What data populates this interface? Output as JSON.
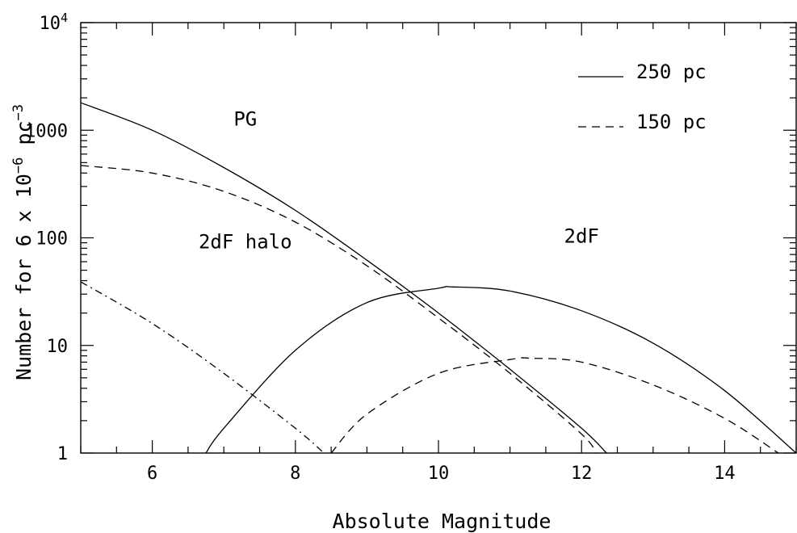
{
  "chart_data": {
    "type": "line",
    "xlabel": "Absolute Magnitude",
    "ylabel": {
      "prefix": "Number for 6 x 10",
      "sup1": "−6",
      "mid": " pc",
      "sup2": "−3"
    },
    "xlim": [
      5,
      15
    ],
    "ylim": [
      1,
      10000
    ],
    "y_scale": "log",
    "x_ticks": [
      6,
      8,
      10,
      12,
      14
    ],
    "x_tick_labels": [
      "6",
      "8",
      "10",
      "12",
      "14"
    ],
    "y_ticks": [
      1,
      10,
      100,
      1000
    ],
    "y_tick_labels": [
      "1",
      "10",
      "100",
      "1000"
    ],
    "y_top_label": {
      "base": "10",
      "exp": "4"
    },
    "legend": {
      "position": "top-right",
      "entries": [
        {
          "label": "250 pc",
          "style": "solid"
        },
        {
          "label": "150 pc",
          "style": "dashed"
        }
      ]
    },
    "annotations": [
      {
        "text": "PG",
        "x": 7.3,
        "y": 1100
      },
      {
        "text": "2dF halo",
        "x": 7.3,
        "y": 80
      },
      {
        "text": "2dF",
        "x": 12.0,
        "y": 90
      }
    ],
    "series": [
      {
        "group": "PG",
        "style": "solid",
        "x": [
          5,
          6,
          7,
          8,
          9,
          10,
          11,
          12,
          12.35
        ],
        "y": [
          1800,
          1000,
          450,
          180,
          62,
          20,
          6,
          1.7,
          1
        ]
      },
      {
        "group": "PG",
        "style": "dashed",
        "x": [
          5,
          6,
          7,
          8,
          9,
          10,
          11,
          12,
          12.2
        ],
        "y": [
          470,
          400,
          270,
          140,
          55,
          18,
          5.5,
          1.5,
          1
        ]
      },
      {
        "group": "2dF",
        "style": "solid",
        "x": [
          6.75,
          7,
          8,
          9,
          10,
          10.2,
          11,
          12,
          13,
          14,
          15
        ],
        "y": [
          1,
          1.7,
          9,
          25,
          34,
          35,
          32,
          21,
          10.5,
          3.8,
          1
        ]
      },
      {
        "group": "2dF",
        "style": "dashed",
        "x": [
          8.5,
          9,
          10,
          11,
          11.3,
          12,
          13,
          14,
          14.75
        ],
        "y": [
          1,
          2.3,
          5.5,
          7.4,
          7.6,
          7,
          4.3,
          2.1,
          1
        ]
      },
      {
        "group": "2dF halo",
        "style": "dashdot",
        "x": [
          5,
          6,
          7,
          8,
          8.4
        ],
        "y": [
          39,
          16,
          5.5,
          1.7,
          1
        ]
      }
    ]
  }
}
